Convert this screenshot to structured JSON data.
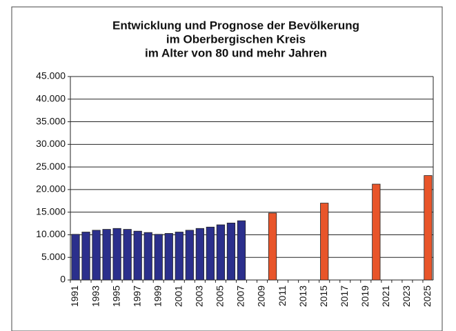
{
  "chart_data": {
    "type": "bar",
    "title": [
      "Entwicklung und Prognose der Bevölkerung",
      "im Oberbergischen Kreis",
      "im Alter von 80 und mehr Jahren"
    ],
    "categories": [
      "1991",
      null,
      "1993",
      null,
      "1995",
      null,
      "1997",
      null,
      "1999",
      null,
      "2001",
      null,
      "2003",
      null,
      "2005",
      null,
      "2007",
      null,
      "2009",
      null,
      "2011",
      null,
      "2013",
      null,
      "2015",
      null,
      "2017",
      null,
      "2019",
      null,
      "2021",
      null,
      "2023",
      null,
      "2025"
    ],
    "values": [
      10100,
      10600,
      11000,
      11200,
      11400,
      11200,
      10800,
      10500,
      10100,
      10300,
      10600,
      11000,
      11400,
      11700,
      12200,
      12600,
      13100,
      null,
      null,
      14800,
      null,
      null,
      null,
      null,
      17000,
      null,
      null,
      null,
      null,
      21200,
      null,
      null,
      null,
      null,
      23100
    ],
    "colors": [
      "#2b2f8c",
      "#2b2f8c",
      "#2b2f8c",
      "#2b2f8c",
      "#2b2f8c",
      "#2b2f8c",
      "#2b2f8c",
      "#2b2f8c",
      "#2b2f8c",
      "#2b2f8c",
      "#2b2f8c",
      "#2b2f8c",
      "#2b2f8c",
      "#2b2f8c",
      "#2b2f8c",
      "#2b2f8c",
      "#2b2f8c",
      null,
      null,
      "#e8552a",
      null,
      null,
      null,
      null,
      "#e8552a",
      null,
      null,
      null,
      null,
      "#e8552a",
      null,
      null,
      null,
      null,
      "#e8552a"
    ],
    "ylim": [
      0,
      45000
    ],
    "yticks": [
      0,
      {
        "value": 5000,
        "label": "5.000"
      },
      {
        "value": 10000,
        "label": "10.000"
      },
      {
        "value": 15000,
        "label": "15.000"
      },
      {
        "value": 20000,
        "label": "20.000"
      },
      {
        "value": 25000,
        "label": "25.000"
      },
      {
        "value": 30000,
        "label": "30.000"
      },
      {
        "value": 35000,
        "label": "35.000"
      },
      {
        "value": 40000,
        "label": "40.000"
      },
      {
        "value": 45000,
        "label": "45.000"
      }
    ],
    "grid": true
  }
}
